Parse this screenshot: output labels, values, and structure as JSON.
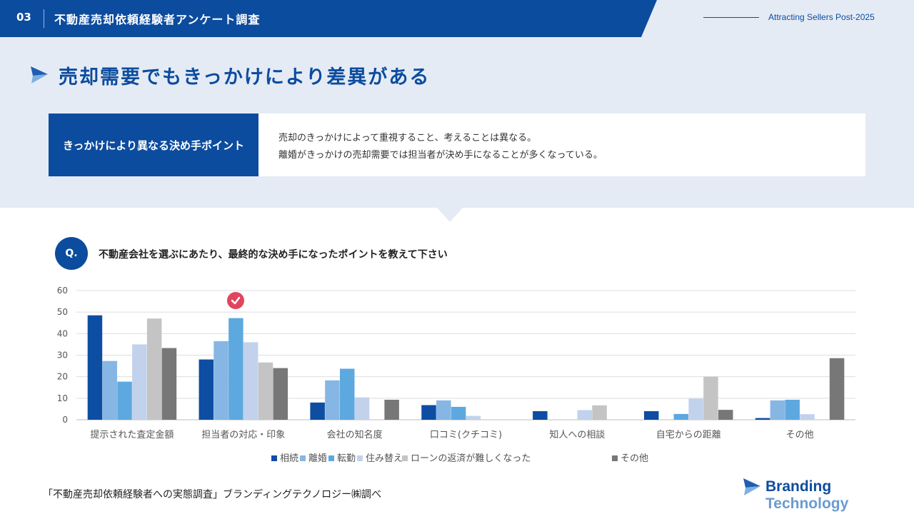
{
  "header": {
    "number": "03",
    "title": "不動産売却依頼経験者アンケート調査",
    "tagline": "Attracting Sellers Post-2025"
  },
  "main_title": "売却需要でもきっかけにより差異がある",
  "key_point": {
    "label": "きっかけにより異なる決め手ポイント",
    "lines": [
      "売却のきっかけによって重視すること、考えることは異なる。",
      "離婚がきっかけの売却需要では担当者が決め手になることが多くなっている。"
    ]
  },
  "question": {
    "badge": "Q.",
    "text": "不動産会社を選ぶにあたり、最終的な決め手になったポイントを教えて下さい"
  },
  "chart_data": {
    "type": "bar",
    "categories": [
      "提示された査定金額",
      "担当者の対応・印象",
      "会社の知名度",
      "口コミ(クチコミ)",
      "知人への相談",
      "自宅からの距離",
      "その他"
    ],
    "ylim": [
      0,
      60
    ],
    "yticks": [
      0,
      10,
      20,
      30,
      40,
      50,
      60
    ],
    "grid": true,
    "legend_position": "bottom",
    "series": [
      {
        "name": "相続",
        "color": "#0d4ea3",
        "values": [
          48.5,
          28,
          8,
          6.8,
          4,
          4,
          0.8
        ]
      },
      {
        "name": "離婚",
        "color": "#86b6e3",
        "values": [
          27.3,
          36.5,
          18.3,
          9,
          0,
          0,
          9
        ]
      },
      {
        "name": "転勤",
        "color": "#5ea8e0",
        "values": [
          17.7,
          47.2,
          23.7,
          6,
          0,
          2.7,
          9.3
        ]
      },
      {
        "name": "住み替え",
        "color": "#c2d2ec",
        "values": [
          35,
          36,
          10.4,
          1.8,
          4.5,
          9.8,
          2.6
        ]
      },
      {
        "name": "ローンの返済が難しくなった",
        "color": "#c4c4c4",
        "values": [
          47,
          26.6,
          0,
          0,
          6.7,
          20,
          0
        ]
      },
      {
        "name": "その他",
        "color": "#777777",
        "values": [
          33.3,
          24,
          9.3,
          0,
          0,
          4.6,
          28.6
        ]
      }
    ]
  },
  "source": "「不動産売却依頼経験者への実態調査」ブランディングテクノロジー㈱調べ",
  "brand": {
    "name_part1": "Branding",
    "name_part2": "Technology"
  },
  "colors": {
    "primary": "#0c4c9e",
    "band": "#e5ebf5",
    "check": "#e0455e"
  }
}
